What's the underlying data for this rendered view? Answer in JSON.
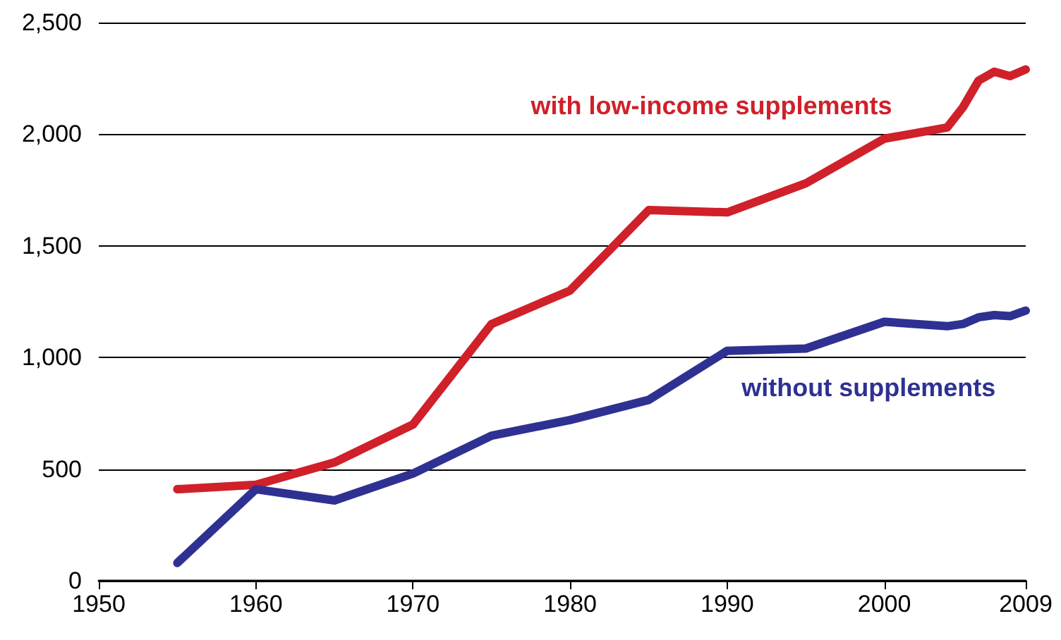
{
  "chart_data": {
    "type": "line",
    "x": [
      1955,
      1960,
      1965,
      1970,
      1975,
      1980,
      1985,
      1990,
      1995,
      2000,
      2004,
      2005,
      2006,
      2007,
      2008,
      2009
    ],
    "series": [
      {
        "name": "with low-income supplements",
        "color": "#d0202a",
        "values": [
          410,
          430,
          530,
          700,
          1150,
          1300,
          1660,
          1650,
          1780,
          1980,
          2030,
          2120,
          2240,
          2280,
          2260,
          2290
        ]
      },
      {
        "name": "without supplements",
        "color": "#2e3192",
        "values": [
          80,
          410,
          360,
          480,
          650,
          720,
          810,
          1030,
          1040,
          1160,
          1140,
          1150,
          1180,
          1190,
          1185,
          1210
        ]
      }
    ],
    "xlim": [
      1950,
      2009
    ],
    "xticks": [
      1950,
      1960,
      1970,
      1980,
      1990,
      2000,
      2009
    ],
    "ylim": [
      0,
      2500
    ],
    "yticks": [
      {
        "value": 0,
        "label": "0"
      },
      {
        "value": 500,
        "label": "500"
      },
      {
        "value": 1000,
        "label": "1,000"
      },
      {
        "value": 1500,
        "label": "1,500"
      },
      {
        "value": 2000,
        "label": "2,000"
      },
      {
        "value": 2500,
        "label": "2,500"
      }
    ],
    "grid": "y",
    "legend": false,
    "marker": "none",
    "line_style": "solid"
  }
}
